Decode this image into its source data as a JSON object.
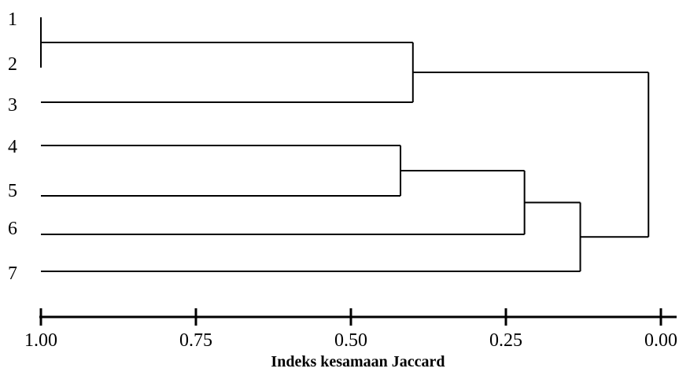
{
  "chart_data": {
    "type": "dendrogram",
    "leaves": [
      "1",
      "2",
      "3",
      "4",
      "5",
      "6",
      "7"
    ],
    "merges": [
      {
        "children": [
          "1",
          "2"
        ],
        "height": 1.0
      },
      {
        "children": [
          "4",
          "5"
        ],
        "height": 0.42
      },
      {
        "children": [
          "1+2",
          "3"
        ],
        "height": 0.4
      },
      {
        "children": [
          "4+5",
          "6"
        ],
        "height": 0.22
      },
      {
        "children": [
          "4+5+6",
          "7"
        ],
        "height": 0.13
      },
      {
        "children": [
          "1+2+3",
          "4+5+6+7"
        ],
        "height": 0.02
      }
    ],
    "xaxis": {
      "label": "Indeks kesamaan Jaccard",
      "ticks": [
        "1.00",
        "0.75",
        "0.50",
        "0.25",
        "0.00"
      ],
      "range": [
        1.0,
        0.0
      ]
    }
  }
}
